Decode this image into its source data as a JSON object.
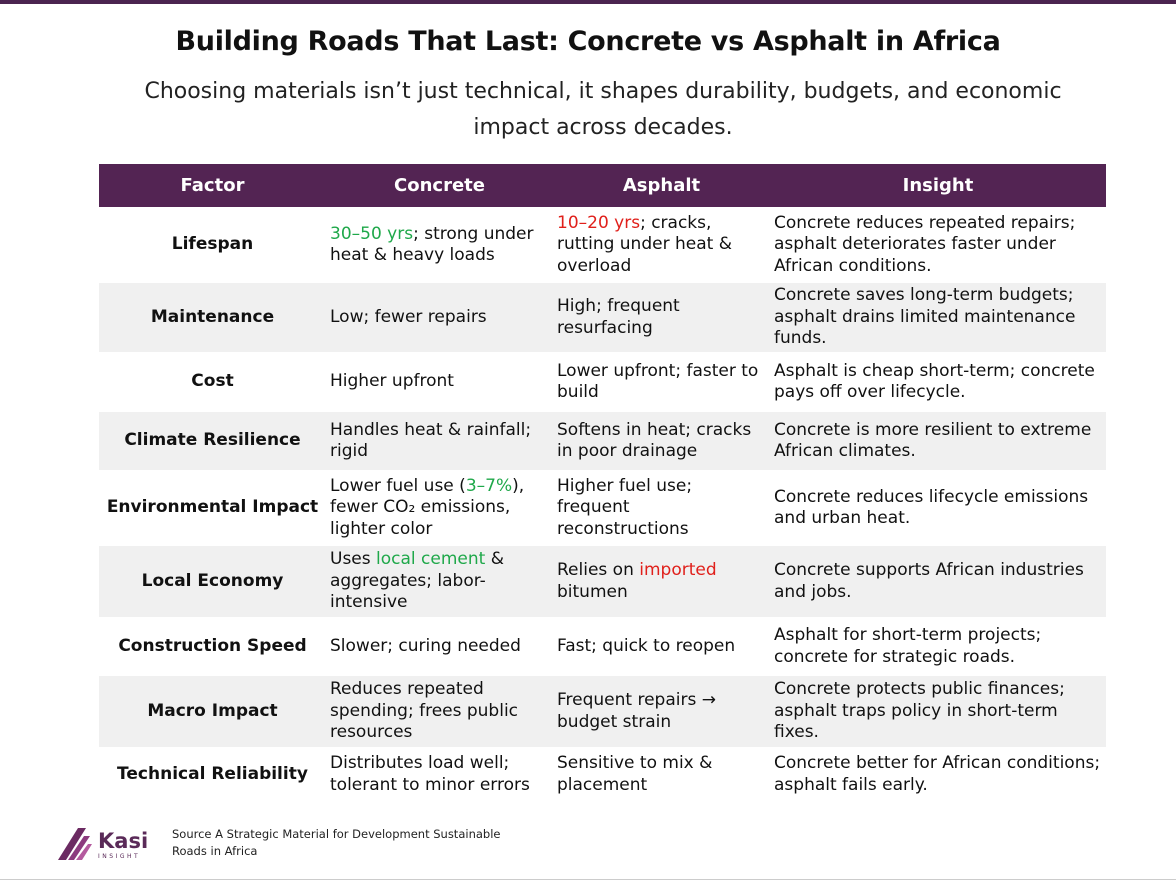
{
  "header": {
    "title": "Building Roads That Last: Concrete vs Asphalt in Africa",
    "subtitle": "Choosing materials isn’t just technical, it shapes durability, budgets, and economic impact across decades."
  },
  "table": {
    "columns": [
      "Factor",
      "Concrete",
      "Asphalt",
      "Insight"
    ],
    "rows": [
      [
        "Lifespan",
        [
          {
            "text": "30–50 yrs",
            "color": "#1fa84a"
          },
          "; strong under heat & heavy loads"
        ],
        [
          {
            "text": "10–20 yrs",
            "color": "#e0201b"
          },
          "; cracks, rutting under heat & overload"
        ],
        "Concrete reduces repeated repairs; asphalt deteriorates faster under African conditions."
      ],
      [
        "Maintenance",
        "Low; fewer repairs",
        "High; frequent resurfacing",
        "Concrete saves long-term budgets; asphalt drains limited maintenance funds."
      ],
      [
        "Cost",
        "Higher upfront",
        "Lower upfront; faster to build",
        "Asphalt is cheap short-term; concrete pays off over lifecycle."
      ],
      [
        "Climate Resilience",
        "Handles heat & rainfall; rigid",
        "Softens in heat; cracks in poor drainage",
        "Concrete is more resilient to extreme African climates."
      ],
      [
        "Environmental Impact",
        [
          "Lower fuel use (",
          {
            "text": "3–7%",
            "color": "#1fa84a"
          },
          "), fewer CO₂ emissions, lighter color"
        ],
        "Higher fuel use; frequent reconstructions",
        "Concrete reduces lifecycle emissions and urban heat."
      ],
      [
        "Local Economy",
        [
          "Uses ",
          {
            "text": "local cement",
            "color": "#1fa84a"
          },
          " & aggregates; labor-intensive"
        ],
        [
          "Relies on ",
          {
            "text": "imported",
            "color": "#e0201b"
          },
          " bitumen"
        ],
        "Concrete supports African industries and jobs."
      ],
      [
        "Construction Speed",
        "Slower; curing needed",
        "Fast; quick to reopen",
        "Asphalt for short-term projects; concrete for strategic roads."
      ],
      [
        "Macro Impact",
        "Reduces repeated spending; frees public resources",
        "Frequent repairs → budget strain",
        "Concrete protects public finances; asphalt traps policy in short-term fixes."
      ],
      [
        "Technical Reliability",
        "Distributes load well; tolerant to minor errors",
        "Sensitive to mix & placement",
        "Concrete better for African conditions; asphalt fails early."
      ]
    ]
  },
  "footer": {
    "logo": "Kasi",
    "logo_sub": "INSIGHT",
    "source": "Source A Strategic Material for Development Sustainable Roads in Africa"
  }
}
